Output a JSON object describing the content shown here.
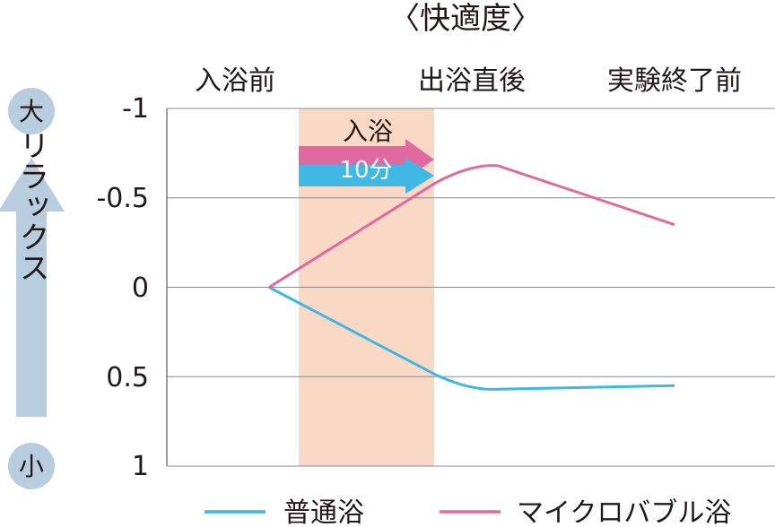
{
  "chart_data": {
    "type": "line",
    "title": "〈快適度〉",
    "x": [
      "入浴前",
      "出浴直後",
      "実験終了前"
    ],
    "ylim": [
      -1,
      1
    ],
    "y_inverted": true,
    "yticks": [
      "-1",
      "-0.5",
      "0",
      "0.5",
      "1"
    ],
    "grid": true,
    "legend_position": "bottom",
    "series": [
      {
        "name": "普通浴",
        "color": "#3fb8e6",
        "values": [
          0,
          0.57,
          0.55
        ]
      },
      {
        "name": "マイクロバブル浴",
        "color": "#e06aa0",
        "values": [
          0,
          -0.68,
          -0.35
        ]
      }
    ],
    "bath_band": {
      "label": "入浴",
      "duration": "10分",
      "color": "#f9d8c6"
    },
    "scale_indicator": {
      "top": "大",
      "bottom": "小",
      "label": "リラックス"
    }
  }
}
